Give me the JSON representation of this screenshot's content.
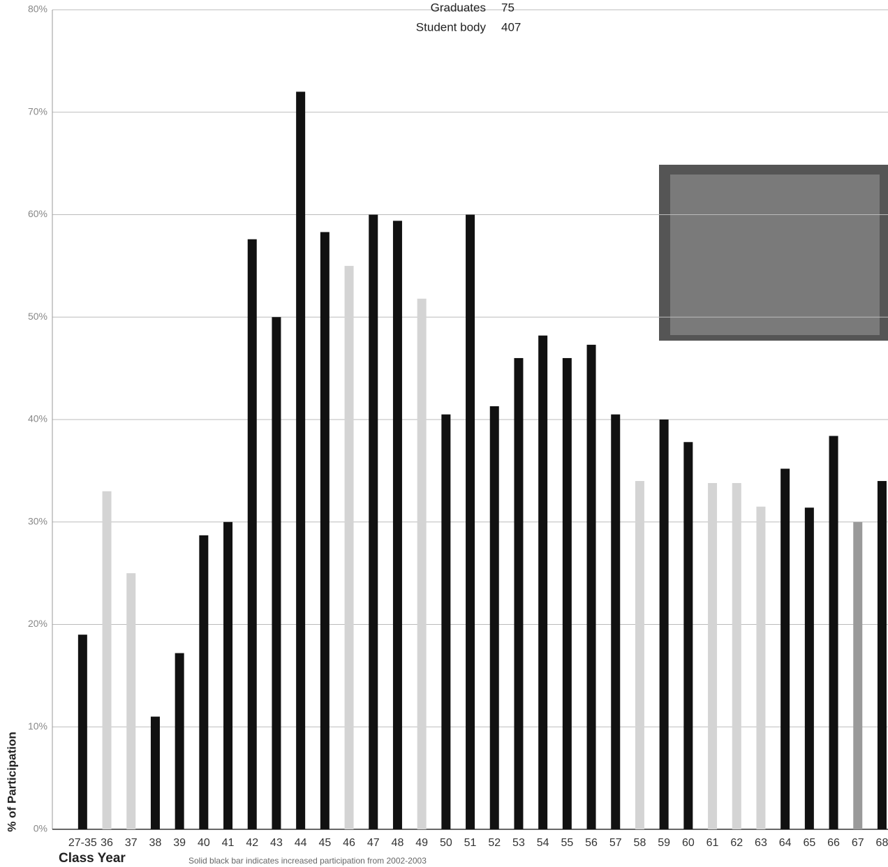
{
  "chart_data": {
    "type": "bar",
    "ylabel": "% of Participation",
    "xlabel": "Class Year",
    "note": "Solid black bar indicates increased participation from 2002-2003",
    "stats": [
      {
        "label": "Graduates",
        "value": 75
      },
      {
        "label": "Student body",
        "value": 407
      }
    ],
    "categories": [
      "27-35",
      "36",
      "37",
      "38",
      "39",
      "40",
      "41",
      "42",
      "43",
      "44",
      "45",
      "46",
      "47",
      "48",
      "49",
      "50",
      "51",
      "52",
      "53",
      "54",
      "55",
      "56",
      "57",
      "58",
      "59",
      "60",
      "61",
      "62",
      "63",
      "64",
      "65",
      "66",
      "67",
      "68"
    ],
    "values": [
      19,
      33,
      25,
      11,
      17.2,
      28.7,
      30,
      57.6,
      50,
      72,
      58.3,
      55,
      60,
      59.4,
      51.8,
      40.5,
      60,
      41.3,
      46,
      48.2,
      46,
      47.3,
      40.5,
      34,
      40,
      37.8,
      33.8,
      33.8,
      31.5,
      35.2,
      31.4,
      38.4,
      30,
      34
    ],
    "colors": [
      "#111111",
      "#d4d4d4",
      "#d4d4d4",
      "#111111",
      "#111111",
      "#111111",
      "#111111",
      "#111111",
      "#111111",
      "#111111",
      "#111111",
      "#d4d4d4",
      "#111111",
      "#111111",
      "#d4d4d4",
      "#111111",
      "#111111",
      "#111111",
      "#111111",
      "#111111",
      "#111111",
      "#111111",
      "#111111",
      "#d4d4d4",
      "#111111",
      "#111111",
      "#d4d4d4",
      "#d4d4d4",
      "#d4d4d4",
      "#111111",
      "#111111",
      "#111111",
      "#9a9a9a",
      "#111111"
    ],
    "ylim": [
      0,
      80
    ],
    "yticks": [
      {
        "value": 0,
        "label": "0%"
      },
      {
        "value": 10,
        "label": "10%"
      },
      {
        "value": 20,
        "label": "20%"
      },
      {
        "value": 30,
        "label": "30%"
      },
      {
        "value": 40,
        "label": "40%"
      },
      {
        "value": 50,
        "label": "50%"
      },
      {
        "value": 60,
        "label": "60%"
      },
      {
        "value": 70,
        "label": "70%"
      },
      {
        "value": 80,
        "label": "80%"
      }
    ],
    "grid": true
  }
}
